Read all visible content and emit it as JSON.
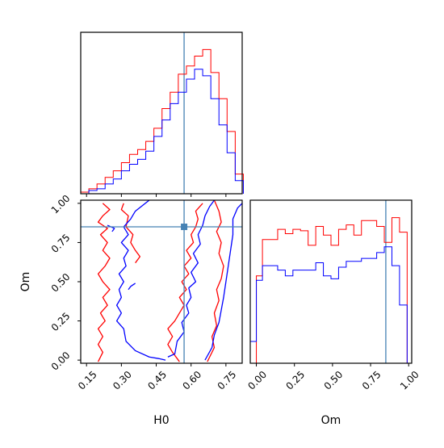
{
  "chart_data": [
    {
      "type": "histogram",
      "panel": "H0-marginal",
      "xlim": [
        0.125,
        0.82
      ],
      "truth": 0.57,
      "bin_edges": [
        0.125,
        0.16,
        0.195,
        0.23,
        0.265,
        0.3,
        0.335,
        0.37,
        0.405,
        0.44,
        0.475,
        0.51,
        0.545,
        0.58,
        0.615,
        0.65,
        0.685,
        0.72,
        0.755,
        0.79,
        0.825
      ],
      "series": [
        {
          "color": "#ff0000",
          "counts": [
            1,
            3,
            6,
            10,
            14,
            19,
            24,
            27,
            32,
            40,
            52,
            62,
            73,
            78,
            84,
            88,
            74,
            58,
            38,
            12
          ]
        },
        {
          "color": "#0000ff",
          "counts": [
            0,
            2,
            3,
            6,
            9,
            14,
            18,
            21,
            26,
            35,
            45,
            55,
            62,
            70,
            76,
            72,
            58,
            42,
            25,
            8
          ]
        }
      ]
    },
    {
      "type": "contour",
      "panel": "H0-vs-Om",
      "xlabel": "H0",
      "ylabel": "Om",
      "xlim": [
        0.125,
        0.82
      ],
      "ylim": [
        -0.02,
        1.02
      ],
      "xticks": [
        "0.15",
        "0.30",
        "0.45",
        "0.60",
        "0.75"
      ],
      "xtick_values": [
        0.15,
        0.3,
        0.45,
        0.6,
        0.75
      ],
      "yticks": [
        "0.00",
        "0.25",
        "0.50",
        "0.75",
        "1.00"
      ],
      "ytick_values": [
        0.0,
        0.25,
        0.5,
        0.75,
        1.0
      ],
      "truth": [
        0.57,
        0.85
      ],
      "series": [
        {
          "color": "#ff0000",
          "contours": [
            [
              [
                0.22,
                1.0
              ],
              [
                0.25,
                0.96
              ],
              [
                0.22,
                0.92
              ],
              [
                0.2,
                0.88
              ],
              [
                0.24,
                0.84
              ],
              [
                0.21,
                0.8
              ],
              [
                0.24,
                0.75
              ],
              [
                0.22,
                0.7
              ],
              [
                0.25,
                0.65
              ],
              [
                0.23,
                0.6
              ],
              [
                0.2,
                0.55
              ],
              [
                0.22,
                0.5
              ],
              [
                0.25,
                0.45
              ],
              [
                0.22,
                0.4
              ],
              [
                0.24,
                0.35
              ],
              [
                0.21,
                0.3
              ],
              [
                0.23,
                0.25
              ],
              [
                0.2,
                0.2
              ],
              [
                0.22,
                0.15
              ],
              [
                0.2,
                0.1
              ],
              [
                0.22,
                0.05
              ],
              [
                0.2,
                -0.01
              ]
            ],
            [
              [
                0.55,
                -0.01
              ],
              [
                0.52,
                0.05
              ],
              [
                0.5,
                0.1
              ],
              [
                0.52,
                0.15
              ],
              [
                0.5,
                0.2
              ],
              [
                0.53,
                0.25
              ],
              [
                0.55,
                0.3
              ],
              [
                0.57,
                0.35
              ],
              [
                0.55,
                0.4
              ],
              [
                0.58,
                0.45
              ],
              [
                0.56,
                0.5
              ],
              [
                0.59,
                0.55
              ],
              [
                0.57,
                0.6
              ],
              [
                0.6,
                0.65
              ],
              [
                0.58,
                0.7
              ],
              [
                0.61,
                0.75
              ],
              [
                0.6,
                0.8
              ],
              [
                0.62,
                0.85
              ],
              [
                0.63,
                0.9
              ],
              [
                0.62,
                0.95
              ],
              [
                0.65,
                1.0
              ]
            ],
            [
              [
                0.7,
                1.02
              ],
              [
                0.72,
                0.95
              ],
              [
                0.73,
                0.88
              ],
              [
                0.71,
                0.82
              ],
              [
                0.73,
                0.75
              ],
              [
                0.72,
                0.68
              ],
              [
                0.74,
                0.6
              ],
              [
                0.73,
                0.52
              ],
              [
                0.71,
                0.45
              ],
              [
                0.72,
                0.38
              ],
              [
                0.7,
                0.3
              ],
              [
                0.71,
                0.22
              ],
              [
                0.69,
                0.15
              ],
              [
                0.7,
                0.08
              ],
              [
                0.68,
                0.02
              ],
              [
                0.67,
                -0.01
              ]
            ],
            [
              [
                0.31,
                1.0
              ],
              [
                0.3,
                0.96
              ],
              [
                0.33,
                0.92
              ],
              [
                0.32,
                0.85
              ],
              [
                0.35,
                0.8
              ],
              [
                0.34,
                0.75
              ],
              [
                0.36,
                0.7
              ],
              [
                0.38,
                0.66
              ],
              [
                0.36,
                0.62
              ]
            ]
          ]
        },
        {
          "color": "#0000ff",
          "contours": [
            [
              [
                0.42,
                1.02
              ],
              [
                0.36,
                0.95
              ],
              [
                0.34,
                0.9
              ],
              [
                0.31,
                0.85
              ],
              [
                0.33,
                0.8
              ],
              [
                0.3,
                0.75
              ],
              [
                0.33,
                0.7
              ],
              [
                0.31,
                0.65
              ],
              [
                0.32,
                0.6
              ],
              [
                0.29,
                0.55
              ],
              [
                0.31,
                0.5
              ],
              [
                0.29,
                0.45
              ],
              [
                0.3,
                0.4
              ],
              [
                0.28,
                0.35
              ],
              [
                0.3,
                0.3
              ],
              [
                0.28,
                0.25
              ],
              [
                0.31,
                0.2
              ],
              [
                0.32,
                0.12
              ],
              [
                0.36,
                0.06
              ],
              [
                0.42,
                0.02
              ],
              [
                0.46,
                0.01
              ],
              [
                0.49,
                0.0
              ]
            ],
            [
              [
                0.5,
                0.02
              ],
              [
                0.53,
                0.04
              ],
              [
                0.54,
                0.12
              ],
              [
                0.57,
                0.18
              ],
              [
                0.56,
                0.24
              ],
              [
                0.59,
                0.3
              ],
              [
                0.58,
                0.35
              ],
              [
                0.6,
                0.4
              ],
              [
                0.59,
                0.46
              ],
              [
                0.62,
                0.5
              ],
              [
                0.6,
                0.56
              ],
              [
                0.63,
                0.62
              ],
              [
                0.61,
                0.68
              ],
              [
                0.64,
                0.74
              ],
              [
                0.63,
                0.8
              ],
              [
                0.65,
                0.86
              ],
              [
                0.66,
                0.92
              ],
              [
                0.68,
                0.98
              ],
              [
                0.7,
                1.02
              ]
            ],
            [
              [
                0.66,
                0.0
              ],
              [
                0.69,
                0.08
              ],
              [
                0.7,
                0.16
              ],
              [
                0.72,
                0.24
              ],
              [
                0.73,
                0.32
              ],
              [
                0.74,
                0.4
              ],
              [
                0.75,
                0.5
              ],
              [
                0.76,
                0.6
              ],
              [
                0.77,
                0.7
              ],
              [
                0.78,
                0.8
              ],
              [
                0.78,
                0.9
              ],
              [
                0.8,
                0.97
              ],
              [
                0.82,
                1.0
              ]
            ],
            [
              [
                0.24,
                0.86
              ],
              [
                0.27,
                0.84
              ],
              [
                0.26,
                0.82
              ]
            ],
            [
              [
                0.36,
                0.49
              ],
              [
                0.34,
                0.47
              ],
              [
                0.33,
                0.45
              ]
            ]
          ]
        }
      ]
    },
    {
      "type": "histogram",
      "panel": "Om-marginal",
      "xlabel": "Om",
      "xlim": [
        -0.04,
        1.02
      ],
      "truth": 0.85,
      "xticks": [
        "0.00",
        "0.25",
        "0.50",
        "0.75",
        "1.00"
      ],
      "xtick_values": [
        0.0,
        0.25,
        0.5,
        0.75,
        1.0
      ],
      "bin_edges": [
        -0.04,
        0.0,
        0.04,
        0.09,
        0.14,
        0.19,
        0.24,
        0.29,
        0.34,
        0.39,
        0.44,
        0.49,
        0.54,
        0.59,
        0.64,
        0.69,
        0.74,
        0.79,
        0.84,
        0.89,
        0.94,
        0.99,
        1.02
      ],
      "series": [
        {
          "color": "#ff0000",
          "counts": [
            0,
            60,
            85,
            85,
            92,
            89,
            92,
            91,
            81,
            94,
            88,
            81,
            92,
            95,
            88,
            98,
            98,
            94,
            83,
            100,
            90,
            0
          ]
        },
        {
          "color": "#0000ff",
          "counts": [
            15,
            57,
            67,
            67,
            64,
            60,
            64,
            64,
            64,
            69,
            60,
            58,
            66,
            70,
            70,
            72,
            72,
            76,
            80,
            67,
            40,
            0
          ]
        }
      ]
    }
  ]
}
